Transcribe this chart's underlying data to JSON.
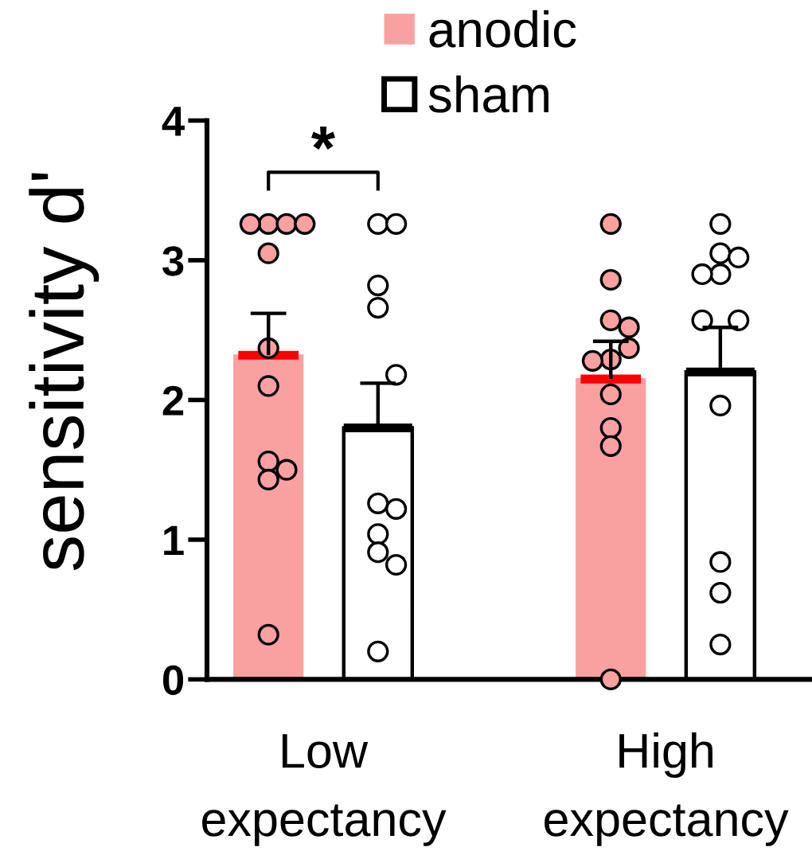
{
  "chart_data": {
    "type": "bar",
    "ylabel": "sensitivity d'",
    "categories": [
      "Low\nexpectancy",
      "High\nexpectancy"
    ],
    "ylim": [
      0,
      4
    ],
    "yticks": [
      0,
      1,
      2,
      3,
      4
    ],
    "grid": false,
    "legend": "top",
    "marker": "circle",
    "annotations": [
      "*"
    ],
    "series": [
      {
        "name": "anodic",
        "color": "#f9a1a1",
        "values": [
          2.32,
          2.15
        ],
        "errors": [
          [
            2.32,
            2.62
          ],
          [
            2.15,
            2.42
          ]
        ]
      },
      {
        "name": "sham",
        "color": "#ffffff",
        "values": [
          1.8,
          2.2
        ],
        "errors": [
          [
            1.8,
            2.12
          ],
          [
            2.2,
            2.52
          ]
        ]
      },
      {
        "type": "scatter",
        "color": "#f9a1a1",
        "x": [
          "Low\nexpectancy",
          "Low\nexpectancy",
          "Low\nexpectancy",
          "Low\nexpectancy",
          "Low\nexpectancy",
          "Low\nexpectancy",
          "Low\nexpectancy",
          "Low\nexpectancy",
          "Low\nexpectancy",
          "Low\nexpectancy",
          "Low\nexpectancy",
          "High\nexpectancy",
          "High\nexpectancy",
          "High\nexpectancy",
          "High\nexpectancy",
          "High\nexpectancy",
          "High\nexpectancy",
          "High\nexpectancy",
          "High\nexpectancy",
          "High\nexpectancy",
          "High\nexpectancy",
          "High\nexpectancy"
        ],
        "values": [
          3.26,
          3.26,
          3.26,
          3.26,
          3.05,
          2.37,
          2.1,
          1.56,
          1.5,
          1.43,
          0.32,
          3.26,
          2.86,
          2.57,
          2.52,
          2.37,
          2.29,
          2.28,
          2.04,
          1.8,
          1.67,
          0.0
        ]
      },
      {
        "type": "scatter",
        "color": "#ffffff",
        "x": [
          "Low\nexpectancy",
          "Low\nexpectancy",
          "Low\nexpectancy",
          "Low\nexpectancy",
          "Low\nexpectancy",
          "Low\nexpectancy",
          "Low\nexpectancy",
          "Low\nexpectancy",
          "Low\nexpectancy",
          "Low\nexpectancy",
          "Low\nexpectancy",
          "High\nexpectancy",
          "High\nexpectancy",
          "High\nexpectancy",
          "High\nexpectancy",
          "High\nexpectancy",
          "High\nexpectancy",
          "High\nexpectancy",
          "High\nexpectancy",
          "High\nexpectancy",
          "High\nexpectancy",
          "High\nexpectancy"
        ],
        "values": [
          3.26,
          3.26,
          2.82,
          2.66,
          2.18,
          1.26,
          1.22,
          1.04,
          0.91,
          0.82,
          0.2,
          3.26,
          3.05,
          3.02,
          2.9,
          2.9,
          2.57,
          2.57,
          1.96,
          0.84,
          0.62,
          0.25
        ]
      }
    ]
  }
}
